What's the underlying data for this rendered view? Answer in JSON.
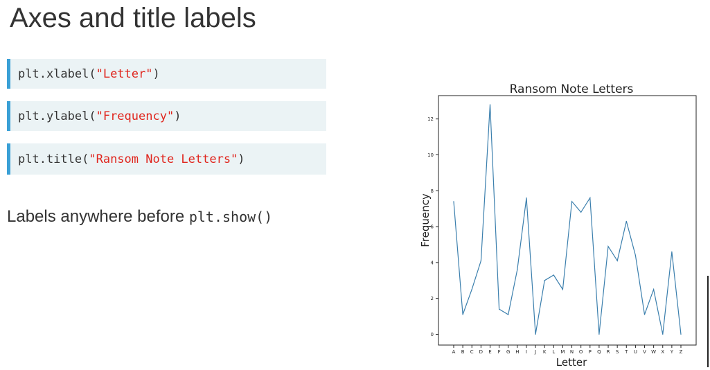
{
  "slide": {
    "title": "Axes and title labels",
    "code_lines": [
      {
        "prefix": "plt.xlabel(",
        "string": "\"Letter\"",
        "suffix": ")"
      },
      {
        "prefix": "plt.ylabel(",
        "string": "\"Frequency\"",
        "suffix": ")"
      },
      {
        "prefix": "plt.title(",
        "string": "\"Ransom Note Letters\"",
        "suffix": ")"
      }
    ],
    "caption_text": "Labels anywhere before ",
    "caption_code": "plt.show()"
  },
  "colors": {
    "code_background": "#ebf3f5",
    "code_accent_bar": "#3aa0d6",
    "code_string": "#e0261e",
    "line_series": "#3b7fad"
  },
  "chart_data": {
    "type": "line",
    "title": "Ransom Note Letters",
    "xlabel": "Letter",
    "ylabel": "Frequency",
    "categories": [
      "A",
      "B",
      "C",
      "D",
      "E",
      "F",
      "G",
      "H",
      "I",
      "J",
      "K",
      "L",
      "M",
      "N",
      "O",
      "P",
      "Q",
      "R",
      "S",
      "T",
      "U",
      "V",
      "W",
      "X",
      "Y",
      "Z"
    ],
    "values": [
      7.4,
      1.1,
      2.5,
      4.1,
      12.8,
      1.4,
      1.1,
      3.6,
      7.6,
      0.0,
      3.0,
      3.3,
      2.5,
      7.4,
      6.8,
      7.6,
      0.0,
      4.9,
      4.1,
      6.3,
      4.4,
      1.1,
      2.5,
      0.0,
      4.6,
      0.0
    ],
    "yticks": [
      0,
      2,
      4,
      6,
      8,
      10,
      12
    ],
    "ylim": [
      -0.6,
      13.3
    ],
    "grid": false
  }
}
